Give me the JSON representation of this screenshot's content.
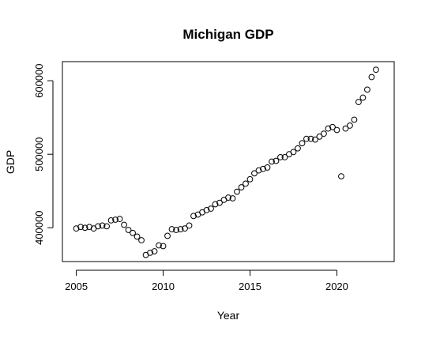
{
  "chart_data": {
    "type": "scatter",
    "title": "Michigan GDP",
    "xlabel": "Year",
    "ylabel": "GDP",
    "xlim": [
      2004.2,
      2023.3
    ],
    "ylim": [
      354000,
      626000
    ],
    "x_ticks": [
      2005,
      2010,
      2015,
      2020
    ],
    "y_ticks": [
      400000,
      500000,
      600000
    ],
    "grid": false,
    "legend": "none",
    "marker": "open-circle",
    "series": [
      {
        "x": [
          2005.0,
          2005.25,
          2005.5,
          2005.75,
          2006.0,
          2006.25,
          2006.5,
          2006.75,
          2007.0,
          2007.25,
          2007.5,
          2007.75,
          2008.0,
          2008.25,
          2008.5,
          2008.75,
          2009.0,
          2009.25,
          2009.5,
          2009.75,
          2010.0,
          2010.25,
          2010.5,
          2010.75,
          2011.0,
          2011.25,
          2011.5,
          2011.75,
          2012.0,
          2012.25,
          2012.5,
          2012.75,
          2013.0,
          2013.25,
          2013.5,
          2013.75,
          2014.0,
          2014.25,
          2014.5,
          2014.75,
          2015.0,
          2015.25,
          2015.5,
          2015.75,
          2016.0,
          2016.25,
          2016.5,
          2016.75,
          2017.0,
          2017.25,
          2017.5,
          2017.75,
          2018.0,
          2018.25,
          2018.5,
          2018.75,
          2019.0,
          2019.25,
          2019.5,
          2019.75,
          2020.0,
          2020.25,
          2020.5,
          2020.75,
          2021.0,
          2021.25,
          2021.5,
          2021.75,
          2022.0,
          2022.25
        ],
        "y": [
          399000,
          401000,
          400000,
          401000,
          399000,
          402000,
          403000,
          402000,
          410000,
          411000,
          412000,
          404000,
          397000,
          393000,
          388000,
          383000,
          363000,
          366000,
          368000,
          376000,
          375000,
          389000,
          398000,
          397000,
          398000,
          399000,
          403000,
          416000,
          418000,
          421000,
          424000,
          426000,
          432000,
          434000,
          438000,
          441000,
          440000,
          449000,
          455000,
          460000,
          466000,
          474000,
          478000,
          480000,
          482000,
          490000,
          491000,
          496000,
          496000,
          500000,
          503000,
          508000,
          515000,
          521000,
          521000,
          520000,
          524000,
          528000,
          535000,
          537000,
          533000,
          470000,
          535000,
          539000,
          547000,
          571000,
          577000,
          588000,
          605000,
          615000
        ]
      }
    ]
  }
}
